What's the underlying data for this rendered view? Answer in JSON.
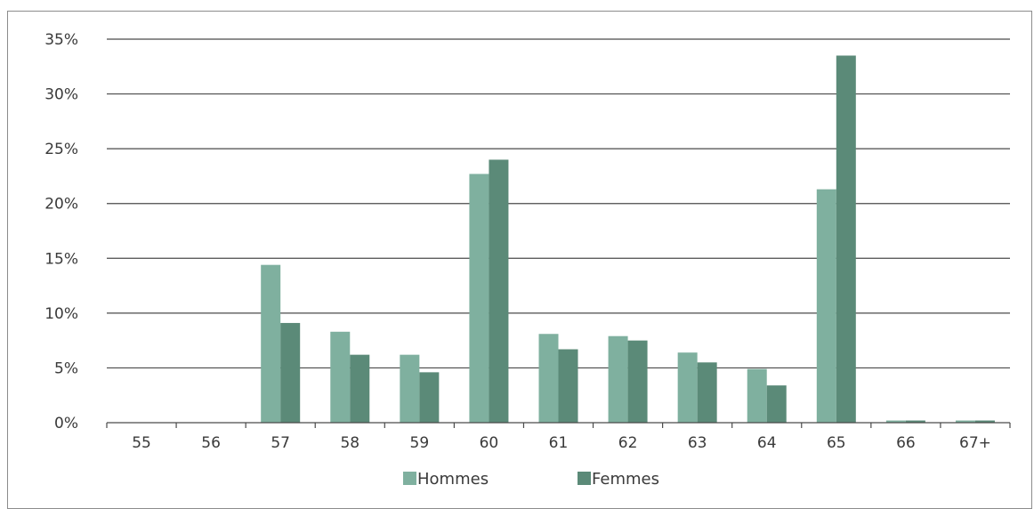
{
  "chart_data": {
    "type": "bar",
    "categories": [
      "55",
      "56",
      "57",
      "58",
      "59",
      "60",
      "61",
      "62",
      "63",
      "64",
      "65",
      "66",
      "67+"
    ],
    "series": [
      {
        "name": "Hommes",
        "color": "#7fb09f",
        "values": [
          0,
          0,
          14.4,
          8.3,
          6.2,
          22.7,
          8.1,
          7.9,
          6.4,
          4.9,
          21.3,
          0.2,
          0.2
        ]
      },
      {
        "name": "Femmes",
        "color": "#5b8a78",
        "values": [
          0,
          0,
          9.1,
          6.2,
          4.6,
          24.0,
          6.7,
          7.5,
          5.5,
          3.4,
          33.5,
          0.2,
          0.2
        ]
      }
    ],
    "yticks": [
      "0%",
      "5%",
      "10%",
      "15%",
      "20%",
      "25%",
      "30%",
      "35%"
    ],
    "ylim": [
      0,
      35
    ],
    "grid": true,
    "legend_position": "bottom",
    "title": "",
    "xlabel": "",
    "ylabel": ""
  }
}
